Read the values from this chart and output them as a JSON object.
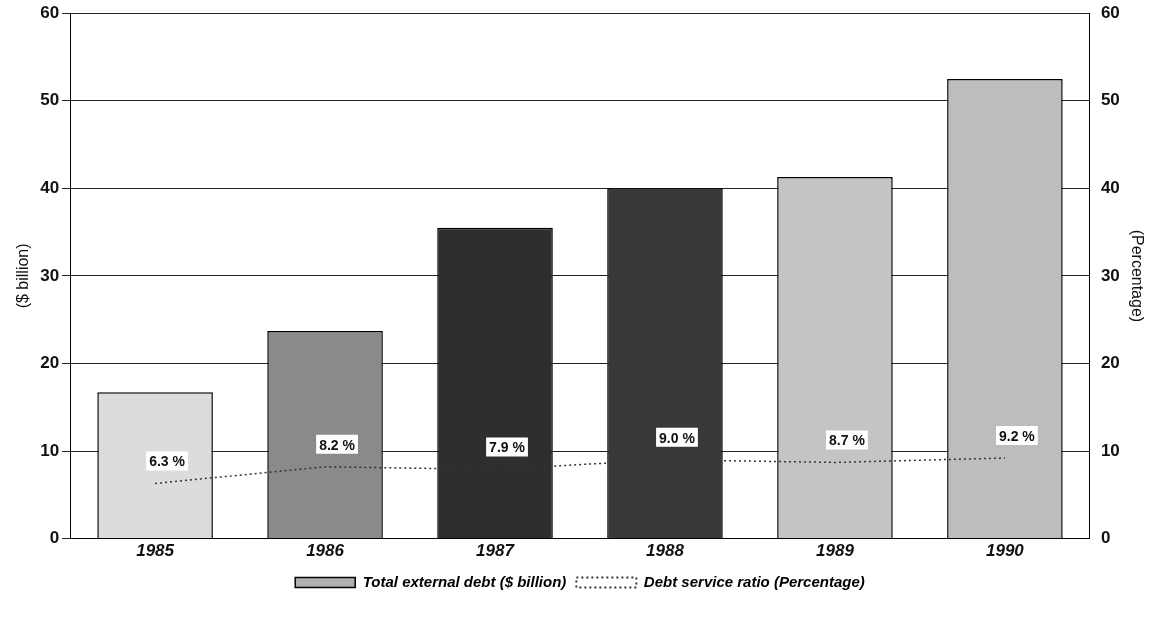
{
  "chart_data": {
    "type": "bar",
    "categories": [
      "1985",
      "1986",
      "1987",
      "1988",
      "1989",
      "1990"
    ],
    "series": [
      {
        "name": "Total external debt ($ billion)",
        "color": "#b0b0b0",
        "colors": [
          "#dcdcdc",
          "#8a8a8a",
          "#2e2e2e",
          "#383838",
          "#c4c4c4",
          "#bdbdbd"
        ],
        "values": [
          16.7,
          23.7,
          35.5,
          40,
          41.3,
          52.5
        ]
      },
      {
        "name": "Debt service ratio (Percentage)",
        "type": "line",
        "color": "#333333",
        "line_style": "dotted",
        "marker": "none",
        "values": [
          6.3,
          8.2,
          7.9,
          9.0,
          8.7,
          9.2
        ],
        "value_labels": [
          "6.3 %",
          "8.2 %",
          "7.9 %",
          "9.0 %",
          "8.7 %",
          "9.2 %"
        ]
      }
    ],
    "ylabel": "($ billion)",
    "y2label": "(Percentage)",
    "ylim": [
      0,
      60
    ],
    "yticks": [
      0,
      10,
      20,
      30,
      40,
      50,
      60
    ],
    "y2lim": [
      0,
      60
    ],
    "y2ticks": [
      0,
      10,
      20,
      30,
      40,
      50,
      60
    ],
    "grid": "y",
    "legend": "bottom"
  }
}
